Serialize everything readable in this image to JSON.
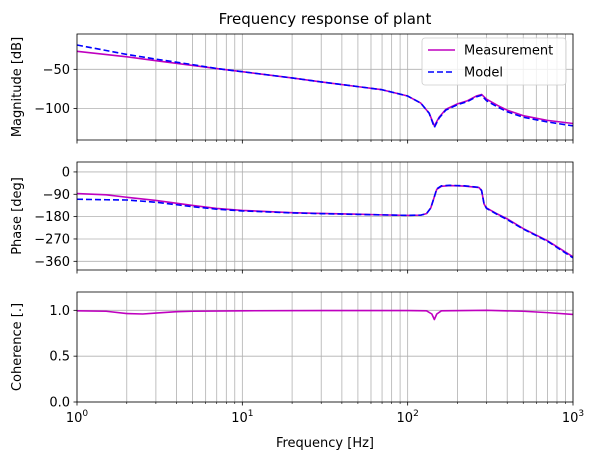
{
  "chart_data": {
    "title": "Frequency response of plant",
    "type": "line",
    "x": {
      "label": "Frequency [Hz]",
      "scale": "log",
      "lim": [
        1,
        1000
      ],
      "major_ticks": [
        {
          "value": 1,
          "base": "10",
          "exp": "0"
        },
        {
          "value": 10,
          "base": "10",
          "exp": "1"
        },
        {
          "value": 100,
          "base": "10",
          "exp": "2"
        },
        {
          "value": 1000,
          "base": "10",
          "exp": "3"
        }
      ]
    },
    "grid": true,
    "grid_minor_x": true,
    "legend": {
      "placement": "top-right",
      "panel": "magnitude"
    },
    "colors": {
      "measurement": "#bf00bf",
      "model": "#0000ff",
      "grid": "#b0b0b0"
    },
    "panels": [
      {
        "id": "magnitude",
        "ylabel": "Magnitude [dB]",
        "ylim": [
          -140,
          -5
        ],
        "yticks": [
          {
            "value": -50,
            "label": "−50"
          },
          {
            "value": -100,
            "label": "−100"
          }
        ],
        "show_xtick_labels": false,
        "series": [
          {
            "name": "Measurement",
            "style": "solid",
            "color": "#bf00bf",
            "points": [
              [
                1,
                -27
              ],
              [
                2,
                -34
              ],
              [
                3,
                -39
              ],
              [
                5,
                -45
              ],
              [
                7,
                -49
              ],
              [
                10,
                -53
              ],
              [
                20,
                -61
              ],
              [
                30,
                -66
              ],
              [
                50,
                -72
              ],
              [
                70,
                -76
              ],
              [
                100,
                -84
              ],
              [
                120,
                -93
              ],
              [
                135,
                -106
              ],
              [
                145,
                -122
              ],
              [
                155,
                -111
              ],
              [
                170,
                -101
              ],
              [
                200,
                -94
              ],
              [
                230,
                -90
              ],
              [
                260,
                -84
              ],
              [
                280,
                -82
              ],
              [
                300,
                -88
              ],
              [
                350,
                -96
              ],
              [
                400,
                -102
              ],
              [
                500,
                -109
              ],
              [
                700,
                -115
              ],
              [
                1000,
                -119
              ]
            ]
          },
          {
            "name": "Model",
            "style": "dashed",
            "color": "#0000ff",
            "points": [
              [
                1,
                -19
              ],
              [
                2,
                -31
              ],
              [
                3,
                -37
              ],
              [
                5,
                -44
              ],
              [
                7,
                -49
              ],
              [
                10,
                -53
              ],
              [
                20,
                -61
              ],
              [
                30,
                -66
              ],
              [
                50,
                -72
              ],
              [
                70,
                -76
              ],
              [
                100,
                -84
              ],
              [
                120,
                -93
              ],
              [
                135,
                -106
              ],
              [
                145,
                -124
              ],
              [
                155,
                -112
              ],
              [
                170,
                -102
              ],
              [
                200,
                -95
              ],
              [
                230,
                -91
              ],
              [
                260,
                -85
              ],
              [
                280,
                -83
              ],
              [
                300,
                -90
              ],
              [
                350,
                -98
              ],
              [
                400,
                -104
              ],
              [
                500,
                -111
              ],
              [
                700,
                -117
              ],
              [
                1000,
                -122
              ]
            ]
          }
        ]
      },
      {
        "id": "phase",
        "ylabel": "Phase [deg]",
        "ylim": [
          -395,
          40
        ],
        "yticks": [
          {
            "value": 0,
            "label": "0"
          },
          {
            "value": -90,
            "label": "−90"
          },
          {
            "value": -180,
            "label": "−180"
          },
          {
            "value": -270,
            "label": "−270"
          },
          {
            "value": -360,
            "label": "−360"
          }
        ],
        "show_xtick_labels": false,
        "series": [
          {
            "name": "Measurement",
            "style": "solid",
            "color": "#bf00bf",
            "points": [
              [
                1,
                -87
              ],
              [
                1.5,
                -92
              ],
              [
                2,
                -102
              ],
              [
                3,
                -115
              ],
              [
                5,
                -135
              ],
              [
                7,
                -147
              ],
              [
                10,
                -155
              ],
              [
                20,
                -164
              ],
              [
                30,
                -167
              ],
              [
                50,
                -170
              ],
              [
                70,
                -173
              ],
              [
                100,
                -175
              ],
              [
                120,
                -174
              ],
              [
                130,
                -168
              ],
              [
                138,
                -145
              ],
              [
                145,
                -100
              ],
              [
                150,
                -70
              ],
              [
                160,
                -58
              ],
              [
                180,
                -55
              ],
              [
                220,
                -57
              ],
              [
                270,
                -63
              ],
              [
                280,
                -75
              ],
              [
                290,
                -130
              ],
              [
                300,
                -145
              ],
              [
                350,
                -170
              ],
              [
                400,
                -189
              ],
              [
                500,
                -228
              ],
              [
                700,
                -277
              ],
              [
                1000,
                -342
              ]
            ]
          },
          {
            "name": "Model",
            "style": "dashed",
            "color": "#0000ff",
            "points": [
              [
                1,
                -110
              ],
              [
                1.5,
                -112
              ],
              [
                2,
                -113
              ],
              [
                3,
                -122
              ],
              [
                5,
                -140
              ],
              [
                7,
                -150
              ],
              [
                10,
                -157
              ],
              [
                20,
                -165
              ],
              [
                30,
                -168
              ],
              [
                50,
                -171
              ],
              [
                70,
                -173
              ],
              [
                100,
                -175
              ],
              [
                120,
                -174
              ],
              [
                130,
                -168
              ],
              [
                138,
                -145
              ],
              [
                145,
                -100
              ],
              [
                150,
                -68
              ],
              [
                160,
                -56
              ],
              [
                180,
                -54
              ],
              [
                220,
                -56
              ],
              [
                270,
                -62
              ],
              [
                280,
                -75
              ],
              [
                290,
                -130
              ],
              [
                300,
                -147
              ],
              [
                350,
                -172
              ],
              [
                400,
                -192
              ],
              [
                500,
                -230
              ],
              [
                700,
                -279
              ],
              [
                1000,
                -346
              ]
            ]
          }
        ]
      },
      {
        "id": "coherence",
        "ylabel": "Coherence [.]",
        "ylim": [
          0,
          1.2
        ],
        "yticks": [
          {
            "value": 0,
            "label": "0.0"
          },
          {
            "value": 0.5,
            "label": "0.5"
          },
          {
            "value": 1.0,
            "label": "1.0"
          }
        ],
        "show_xtick_labels": true,
        "series": [
          {
            "name": "Measurement",
            "style": "solid",
            "color": "#bf00bf",
            "points": [
              [
                1,
                0.995
              ],
              [
                1.5,
                0.99
              ],
              [
                2,
                0.965
              ],
              [
                2.5,
                0.96
              ],
              [
                3,
                0.97
              ],
              [
                4,
                0.985
              ],
              [
                5,
                0.99
              ],
              [
                10,
                0.995
              ],
              [
                30,
                0.998
              ],
              [
                100,
                0.998
              ],
              [
                130,
                0.995
              ],
              [
                140,
                0.96
              ],
              [
                145,
                0.9
              ],
              [
                150,
                0.96
              ],
              [
                160,
                0.995
              ],
              [
                300,
                1.0
              ],
              [
                500,
                0.99
              ],
              [
                700,
                0.975
              ],
              [
                1000,
                0.955
              ]
            ]
          }
        ]
      }
    ]
  }
}
